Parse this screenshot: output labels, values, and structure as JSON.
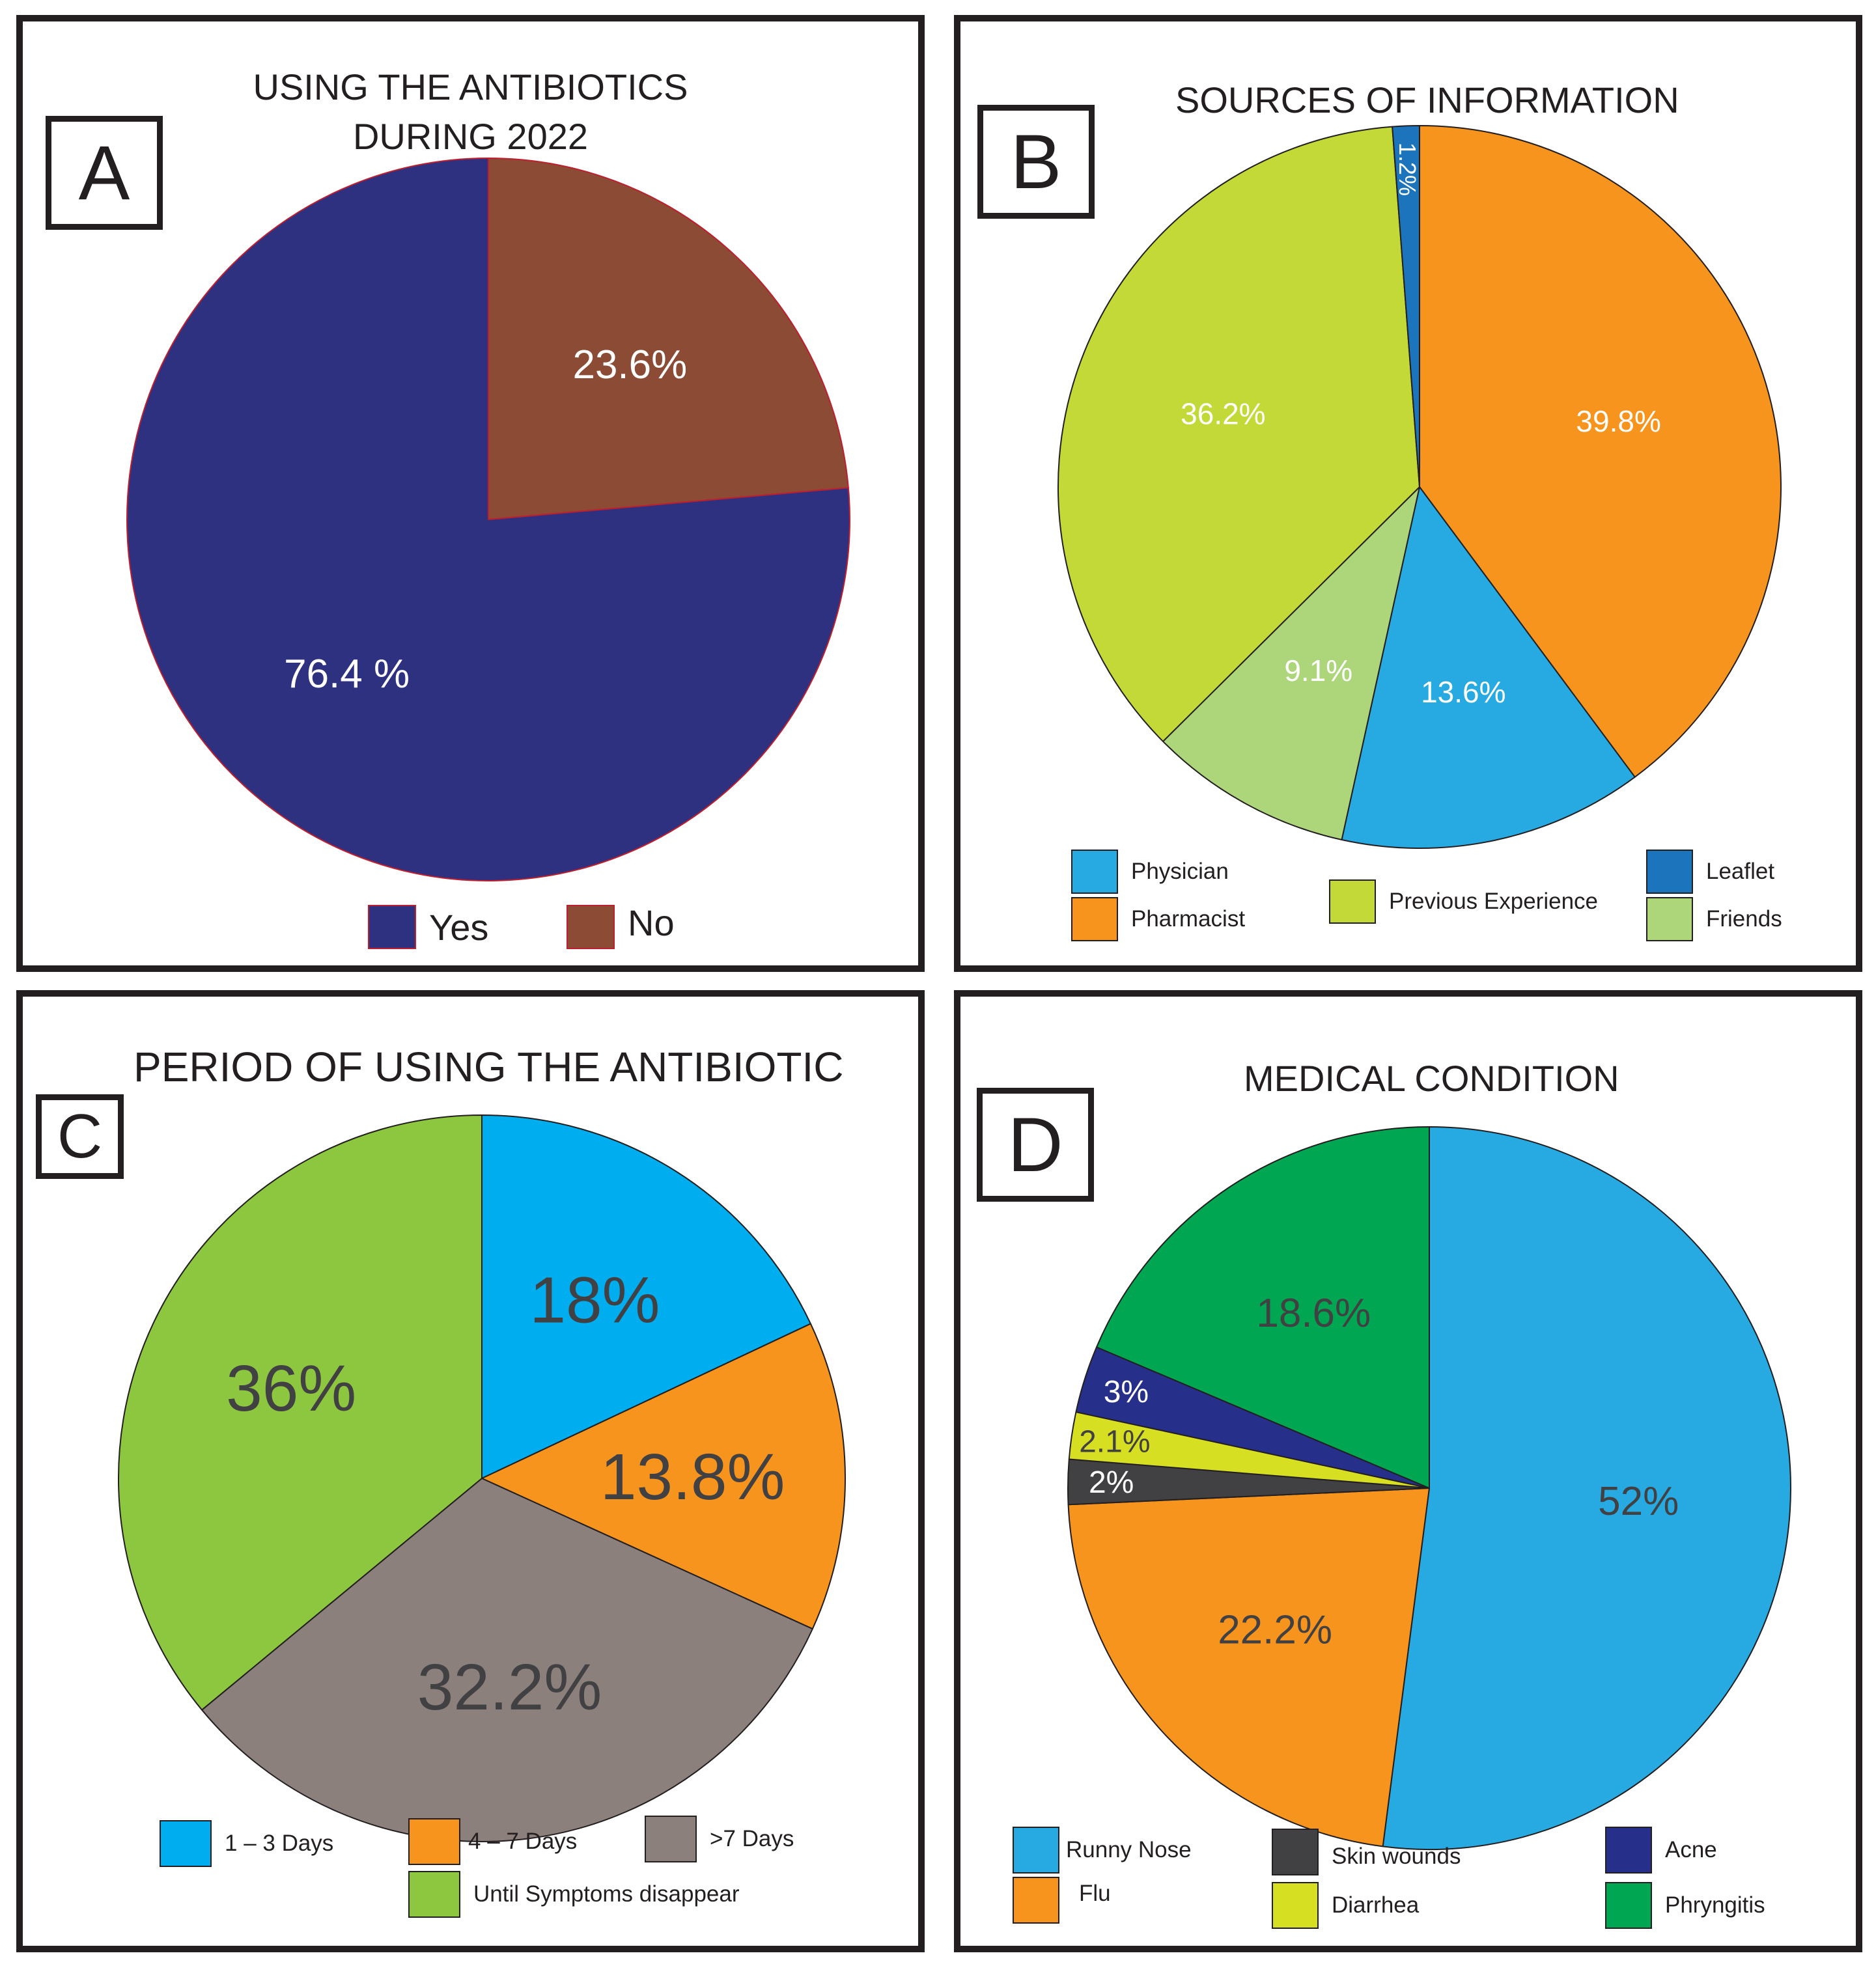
{
  "panels": {
    "a": {
      "letter": "A",
      "title_line1": "USING THE ANTIBIOTICS",
      "title_line2": "DURING 2022"
    },
    "b": {
      "letter": "B",
      "title": "SOURCES OF INFORMATION"
    },
    "c": {
      "letter": "C",
      "title": "PERIOD OF USING THE ANTIBIOTIC"
    },
    "d": {
      "letter": "D",
      "title": "MEDICAL CONDITION"
    }
  },
  "chart_data": [
    {
      "id": "a",
      "type": "pie",
      "title": "USING THE ANTIBIOTICS DURING 2022",
      "start_angle_deg": 0,
      "direction": "clockwise",
      "slices": [
        {
          "name": "No",
          "value": 23.6,
          "label": "23.6%",
          "color": "#8b4b35",
          "label_color": "#ffffff"
        },
        {
          "name": "Yes",
          "value": 76.4,
          "label": "76.4 %",
          "color": "#2e3180",
          "label_color": "#ffffff"
        }
      ],
      "legend": [
        {
          "name": "Yes",
          "color": "#2e3180"
        },
        {
          "name": "No",
          "color": "#8b4b35"
        }
      ],
      "legend_position": "bottom"
    },
    {
      "id": "b",
      "type": "pie",
      "title": "SOURCES OF INFORMATION",
      "start_angle_deg": 0,
      "direction": "clockwise",
      "slices": [
        {
          "name": "Pharmacist",
          "value": 39.8,
          "label": "39.8%",
          "color": "#f7941d",
          "label_color": "#ffffff"
        },
        {
          "name": "Physician",
          "value": 13.6,
          "label": "13.6%",
          "color": "#27aae1",
          "label_color": "#ffffff"
        },
        {
          "name": "Friends",
          "value": 9.1,
          "label": "9.1%",
          "color": "#add57a",
          "label_color": "#ffffff"
        },
        {
          "name": "Previous Experience",
          "value": 36.2,
          "label": "36.2%",
          "color": "#c3d938",
          "label_color": "#ffffff"
        },
        {
          "name": "Leaflet",
          "value": 1.2,
          "label": "1.2%",
          "color": "#1c75bc",
          "label_color": "#ffffff"
        }
      ],
      "legend": [
        {
          "name": "Physician",
          "color": "#27aae1"
        },
        {
          "name": "Pharmacist",
          "color": "#f7941d"
        },
        {
          "name": "Previous Experience",
          "color": "#c3d938"
        },
        {
          "name": "Leaflet",
          "color": "#1c75bc"
        },
        {
          "name": "Friends",
          "color": "#add57a"
        }
      ],
      "legend_position": "bottom"
    },
    {
      "id": "c",
      "type": "pie",
      "title": "PERIOD OF USING THE ANTIBIOTIC",
      "start_angle_deg": 0,
      "direction": "clockwise",
      "slices": [
        {
          "name": "1 – 3 Days",
          "value": 18,
          "label": "18%",
          "color": "#00aeef",
          "label_color": "#414042"
        },
        {
          "name": "4 – 7 Days",
          "value": 13.8,
          "label": "13.8%",
          "color": "#f7941d",
          "label_color": "#414042"
        },
        {
          "name": ">7 Days",
          "value": 32.2,
          "label": "32.2%",
          "color": "#8b807b",
          "label_color": "#414042"
        },
        {
          "name": "Until Symptoms disappear",
          "value": 36,
          "label": "36%",
          "color": "#8dc63f",
          "label_color": "#414042"
        }
      ],
      "legend": [
        {
          "name": "1 – 3 Days",
          "color": "#00aeef"
        },
        {
          "name": "4 – 7 Days",
          "color": "#f7941d"
        },
        {
          "name": ">7 Days",
          "color": "#8b807b"
        },
        {
          "name": "Until Symptoms disappear",
          "color": "#8dc63f"
        }
      ],
      "legend_position": "bottom"
    },
    {
      "id": "d",
      "type": "pie",
      "title": "MEDICAL CONDITION",
      "start_angle_deg": 0,
      "direction": "clockwise",
      "slices": [
        {
          "name": "Runny Nose",
          "value": 52,
          "label": "52%",
          "color": "#27aae1",
          "label_color": "#414042"
        },
        {
          "name": "Flu",
          "value": 22.2,
          "label": "22.2%",
          "color": "#f7941d",
          "label_color": "#414042"
        },
        {
          "name": "Skin wounds",
          "value": 2,
          "label": "2%",
          "color": "#414042",
          "label_color": "#ffffff"
        },
        {
          "name": "Diarrhea",
          "value": 2.1,
          "label": "2.1%",
          "color": "#d7df23",
          "label_color": "#414042"
        },
        {
          "name": "Acne",
          "value": 3,
          "label": "3%",
          "color": "#262f8a",
          "label_color": "#ffffff"
        },
        {
          "name": "Phryngitis",
          "value": 18.6,
          "label": "18.6%",
          "color": "#00a651",
          "label_color": "#414042"
        }
      ],
      "legend": [
        {
          "name": "Runny Nose",
          "color": "#27aae1"
        },
        {
          "name": "Flu",
          "color": "#f7941d"
        },
        {
          "name": "Skin wounds",
          "color": "#414042"
        },
        {
          "name": "Diarrhea",
          "color": "#d7df23"
        },
        {
          "name": "Acne",
          "color": "#262f8a"
        },
        {
          "name": "Phryngitis",
          "color": "#00a651"
        }
      ],
      "legend_position": "bottom"
    }
  ]
}
